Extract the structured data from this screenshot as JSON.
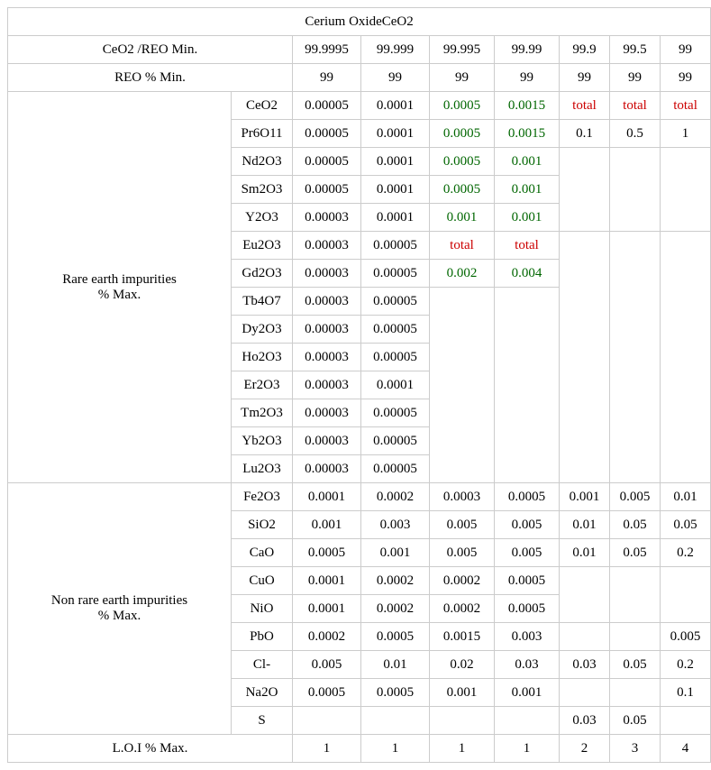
{
  "title": "Cerium OxideCeO2",
  "headers": {
    "row1_label": "CeO2 /REO Min.",
    "row2_label": "REO % Min.",
    "grades": [
      "99.9995",
      "99.999",
      "99.995",
      "99.99",
      "99.9",
      "99.5",
      "99"
    ],
    "reo": [
      "99",
      "99",
      "99",
      "99",
      "99",
      "99",
      "99"
    ]
  },
  "rare_label_line1": "Rare earth impurities",
  "rare_label_line2": "% Max.",
  "nonrare_label_line1": "Non rare earth impurities",
  "nonrare_label_line2": "% Max.",
  "loi_label": "L.O.I % Max.",
  "rare": {
    "r0": {
      "name": "CeO2",
      "c": [
        "0.00005",
        "0.0001",
        "0.0005",
        "0.0015",
        "total",
        "total",
        "total"
      ]
    },
    "r1": {
      "name": "Pr6O11",
      "c": [
        "0.00005",
        "0.0001",
        "0.0005",
        "0.0015",
        "0.1",
        "0.5",
        "1"
      ]
    },
    "r2": {
      "name": "Nd2O3",
      "c": [
        "0.00005",
        "0.0001",
        "0.0005",
        "0.001"
      ]
    },
    "r3": {
      "name": "Sm2O3",
      "c": [
        "0.00005",
        "0.0001",
        "0.0005",
        "0.001"
      ]
    },
    "r4": {
      "name": "Y2O3",
      "c": [
        "0.00003",
        "0.0001",
        "0.001",
        "0.001"
      ]
    },
    "r5": {
      "name": "Eu2O3",
      "c": [
        "0.00003",
        "0.00005",
        "total",
        "total"
      ]
    },
    "r6": {
      "name": "Gd2O3",
      "c": [
        "0.00003",
        "0.00005",
        "0.002",
        "0.004"
      ]
    },
    "r7": {
      "name": "Tb4O7",
      "c": [
        "0.00003",
        "0.00005"
      ]
    },
    "r8": {
      "name": "Dy2O3",
      "c": [
        "0.00003",
        "0.00005"
      ]
    },
    "r9": {
      "name": "Ho2O3",
      "c": [
        "0.00003",
        "0.00005"
      ]
    },
    "r10": {
      "name": "Er2O3",
      "c": [
        "0.00003",
        "0.0001"
      ]
    },
    "r11": {
      "name": "Tm2O3",
      "c": [
        "0.00003",
        "0.00005"
      ]
    },
    "r12": {
      "name": "Yb2O3",
      "c": [
        "0.00003",
        "0.00005"
      ]
    },
    "r13": {
      "name": "Lu2O3",
      "c": [
        "0.00003",
        "0.00005"
      ]
    }
  },
  "nonrare": {
    "n0": {
      "name": "Fe2O3",
      "c": [
        "0.0001",
        "0.0002",
        "0.0003",
        "0.0005",
        "0.001",
        "0.005",
        "0.01"
      ]
    },
    "n1": {
      "name": "SiO2",
      "c": [
        "0.001",
        "0.003",
        "0.005",
        "0.005",
        "0.01",
        "0.05",
        "0.05"
      ]
    },
    "n2": {
      "name": "CaO",
      "c": [
        "0.0005",
        "0.001",
        "0.005",
        "0.005",
        "0.01",
        "0.05",
        "0.2"
      ]
    },
    "n3": {
      "name": "CuO",
      "c": [
        "0.0001",
        "0.0002",
        "0.0002",
        "0.0005"
      ]
    },
    "n4": {
      "name": "NiO",
      "c": [
        "0.0001",
        "0.0002",
        "0.0002",
        "0.0005"
      ]
    },
    "n5": {
      "name": "PbO",
      "c": [
        "0.0002",
        "0.0005",
        "0.0015",
        "0.003",
        "",
        "",
        "0.005"
      ]
    },
    "n6": {
      "name": "Cl-",
      "c": [
        "0.005",
        "0.01",
        "0.02",
        "0.03",
        "0.03",
        "0.05",
        "0.2"
      ]
    },
    "n7": {
      "name": "Na2O",
      "c": [
        "0.0005",
        "0.0005",
        "0.001",
        "0.001",
        "",
        "",
        "0.1"
      ]
    },
    "n8": {
      "name": "S",
      "c": [
        "",
        "",
        "",
        "",
        "0.03",
        "0.05",
        ""
      ]
    }
  },
  "loi": [
    "1",
    "1",
    "1",
    "1",
    "2",
    "3",
    "4"
  ],
  "colors": {
    "green": "#006600",
    "red": "#cc0000"
  }
}
